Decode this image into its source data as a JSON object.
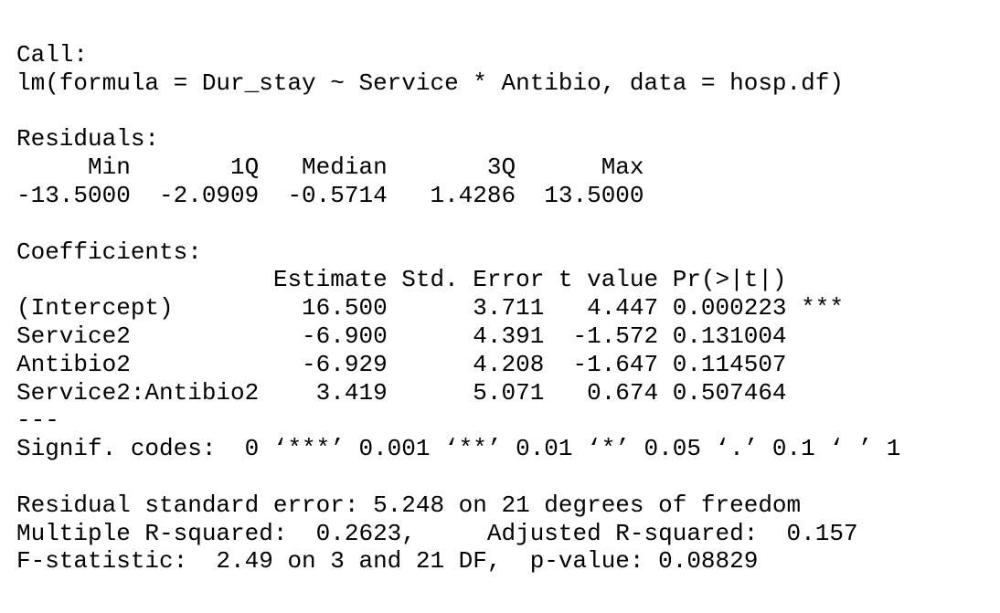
{
  "blocks": [
    {
      "lines": [
        "Call:",
        "lm(formula = Dur_stay ~ Service * Antibio, data = hosp.df)"
      ]
    },
    {
      "lines": [
        "Residuals:",
        "     Min       1Q   Median       3Q      Max",
        "-13.5000  -2.0909  -0.5714   1.4286  13.5000"
      ]
    },
    {
      "lines": [
        "Coefficients:",
        "                  Estimate Std. Error t value Pr(>|t|)",
        "(Intercept)         16.500      3.711   4.447 0.000223 ***",
        "Service2            -6.900      4.391  -1.572 0.131004",
        "Antibio2            -6.929      4.208  -1.647 0.114507",
        "Service2:Antibio2    3.419      5.071   0.674 0.507464",
        "---",
        "Signif. codes:  0 ‘***’ 0.001 ‘**’ 0.01 ‘*’ 0.05 ‘.’ 0.1 ‘ ’ 1"
      ]
    },
    {
      "lines": [
        "Residual standard error: 5.248 on 21 degrees of freedom",
        "Multiple R-squared:  0.2623,     Adjusted R-squared:  0.157",
        "F-statistic:  2.49 on 3 and 21 DF,  p-value: 0.08829"
      ]
    }
  ]
}
